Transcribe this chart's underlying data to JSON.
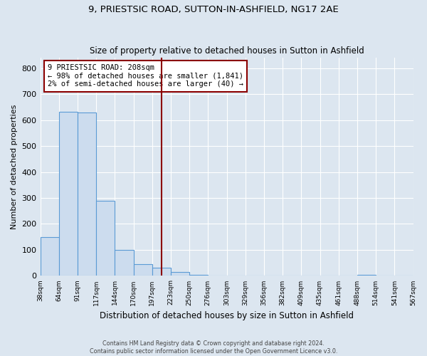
{
  "title": "9, PRIESTSIC ROAD, SUTTON-IN-ASHFIELD, NG17 2AE",
  "subtitle": "Size of property relative to detached houses in Sutton in Ashfield",
  "xlabel": "Distribution of detached houses by size in Sutton in Ashfield",
  "ylabel": "Number of detached properties",
  "bar_values": [
    148,
    632,
    628,
    288,
    101,
    46,
    32,
    14,
    5,
    1,
    0,
    0,
    0,
    0,
    0,
    0,
    0,
    5,
    0,
    0
  ],
  "bar_color": "#ccdcee",
  "bar_edge_color": "#5b9bd5",
  "vline_x_idx": 6.5,
  "vline_color": "#8b0000",
  "annotation_line1": "9 PRIESTSIC ROAD: 208sqm",
  "annotation_line2": "← 98% of detached houses are smaller (1,841)",
  "annotation_line3": "2% of semi-detached houses are larger (40) →",
  "annotation_box_color": "#ffffff",
  "annotation_box_edge": "#8b0000",
  "ylim": [
    0,
    840
  ],
  "bin_labels": [
    "38sqm",
    "64sqm",
    "91sqm",
    "117sqm",
    "144sqm",
    "170sqm",
    "197sqm",
    "223sqm",
    "250sqm",
    "276sqm",
    "303sqm",
    "329sqm",
    "356sqm",
    "382sqm",
    "409sqm",
    "435sqm",
    "461sqm",
    "488sqm",
    "514sqm",
    "541sqm",
    "567sqm"
  ],
  "footer_line1": "Contains HM Land Registry data © Crown copyright and database right 2024.",
  "footer_line2": "Contains public sector information licensed under the Open Government Licence v3.0.",
  "background_color": "#dce6f0",
  "plot_bg_color": "#dce6f0",
  "grid_color": "#ffffff",
  "title_fontsize": 9.5,
  "subtitle_fontsize": 8.5
}
